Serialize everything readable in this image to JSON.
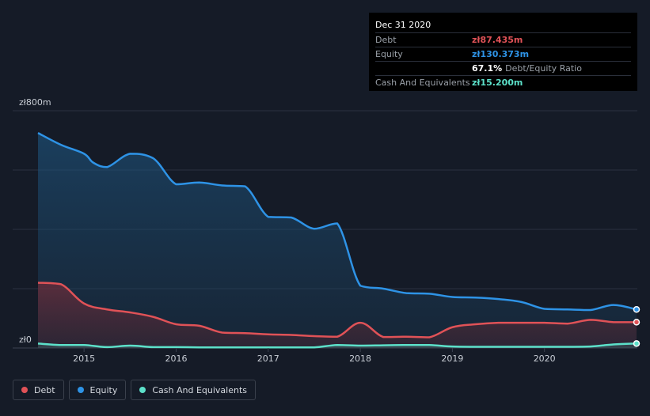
{
  "tooltip": {
    "date": "Dec 31 2020",
    "debt_label": "Debt",
    "debt_value": "zł87.435m",
    "equity_label": "Equity",
    "equity_value": "zł130.373m",
    "ratio_value": "67.1%",
    "ratio_label": "Debt/Equity Ratio",
    "cash_label": "Cash And Equivalents",
    "cash_value": "zł15.200m"
  },
  "legend": [
    {
      "label": "Debt",
      "color": "#e05257"
    },
    {
      "label": "Equity",
      "color": "#2e93e6"
    },
    {
      "label": "Cash And Equivalents",
      "color": "#5ce0c9"
    }
  ],
  "colors": {
    "debt": "#e05257",
    "equity": "#2e93e6",
    "cash": "#5ce0c9"
  },
  "chart_data": {
    "type": "area",
    "title": "",
    "xlabel": "",
    "ylabel": "",
    "y_top_label": "zł800m",
    "y_bottom_label": "zł0",
    "ylim": [
      0,
      800
    ],
    "xlim": [
      2014.5,
      2021.0
    ],
    "x_ticks": [
      2015,
      2016,
      2017,
      2018,
      2019,
      2020
    ],
    "x_tick_labels": [
      "2015",
      "2016",
      "2017",
      "2018",
      "2019",
      "2020"
    ],
    "series": [
      {
        "name": "Equity",
        "x": [
          2014.5,
          2014.75,
          2015.0,
          2015.1,
          2015.25,
          2015.5,
          2015.75,
          2016.0,
          2016.25,
          2016.5,
          2016.75,
          2017.0,
          2017.25,
          2017.5,
          2017.75,
          2018.0,
          2018.25,
          2018.5,
          2018.75,
          2019.0,
          2019.25,
          2019.5,
          2019.75,
          2020.0,
          2020.25,
          2020.5,
          2020.75,
          2021.0
        ],
        "values": [
          725,
          685,
          655,
          625,
          610,
          655,
          640,
          552,
          558,
          548,
          545,
          442,
          440,
          402,
          420,
          210,
          200,
          185,
          183,
          172,
          170,
          165,
          155,
          132,
          130,
          128,
          145,
          130
        ]
      },
      {
        "name": "Debt",
        "x": [
          2014.5,
          2014.75,
          2015.0,
          2015.25,
          2015.5,
          2015.75,
          2016.0,
          2016.25,
          2016.5,
          2016.75,
          2017.0,
          2017.25,
          2017.5,
          2017.75,
          2018.0,
          2018.25,
          2018.5,
          2018.75,
          2019.0,
          2019.25,
          2019.5,
          2019.75,
          2020.0,
          2020.25,
          2020.5,
          2020.75,
          2021.0
        ],
        "values": [
          220,
          215,
          150,
          130,
          120,
          105,
          80,
          75,
          52,
          50,
          46,
          44,
          40,
          38,
          85,
          37,
          38,
          36,
          70,
          80,
          85,
          85,
          85,
          82,
          95,
          87,
          87
        ]
      },
      {
        "name": "Cash And Equivalents",
        "x": [
          2014.5,
          2014.75,
          2015.0,
          2015.25,
          2015.5,
          2015.75,
          2016.0,
          2016.25,
          2016.5,
          2016.75,
          2017.0,
          2017.25,
          2017.5,
          2017.75,
          2018.0,
          2018.25,
          2018.5,
          2018.75,
          2019.0,
          2019.25,
          2019.5,
          2019.75,
          2020.0,
          2020.25,
          2020.5,
          2020.75,
          2021.0
        ],
        "values": [
          15,
          10,
          10,
          3,
          8,
          3,
          3,
          2,
          2,
          2,
          2,
          2,
          2,
          10,
          8,
          9,
          10,
          10,
          5,
          4,
          4,
          4,
          4,
          4,
          5,
          12,
          15
        ]
      }
    ]
  }
}
